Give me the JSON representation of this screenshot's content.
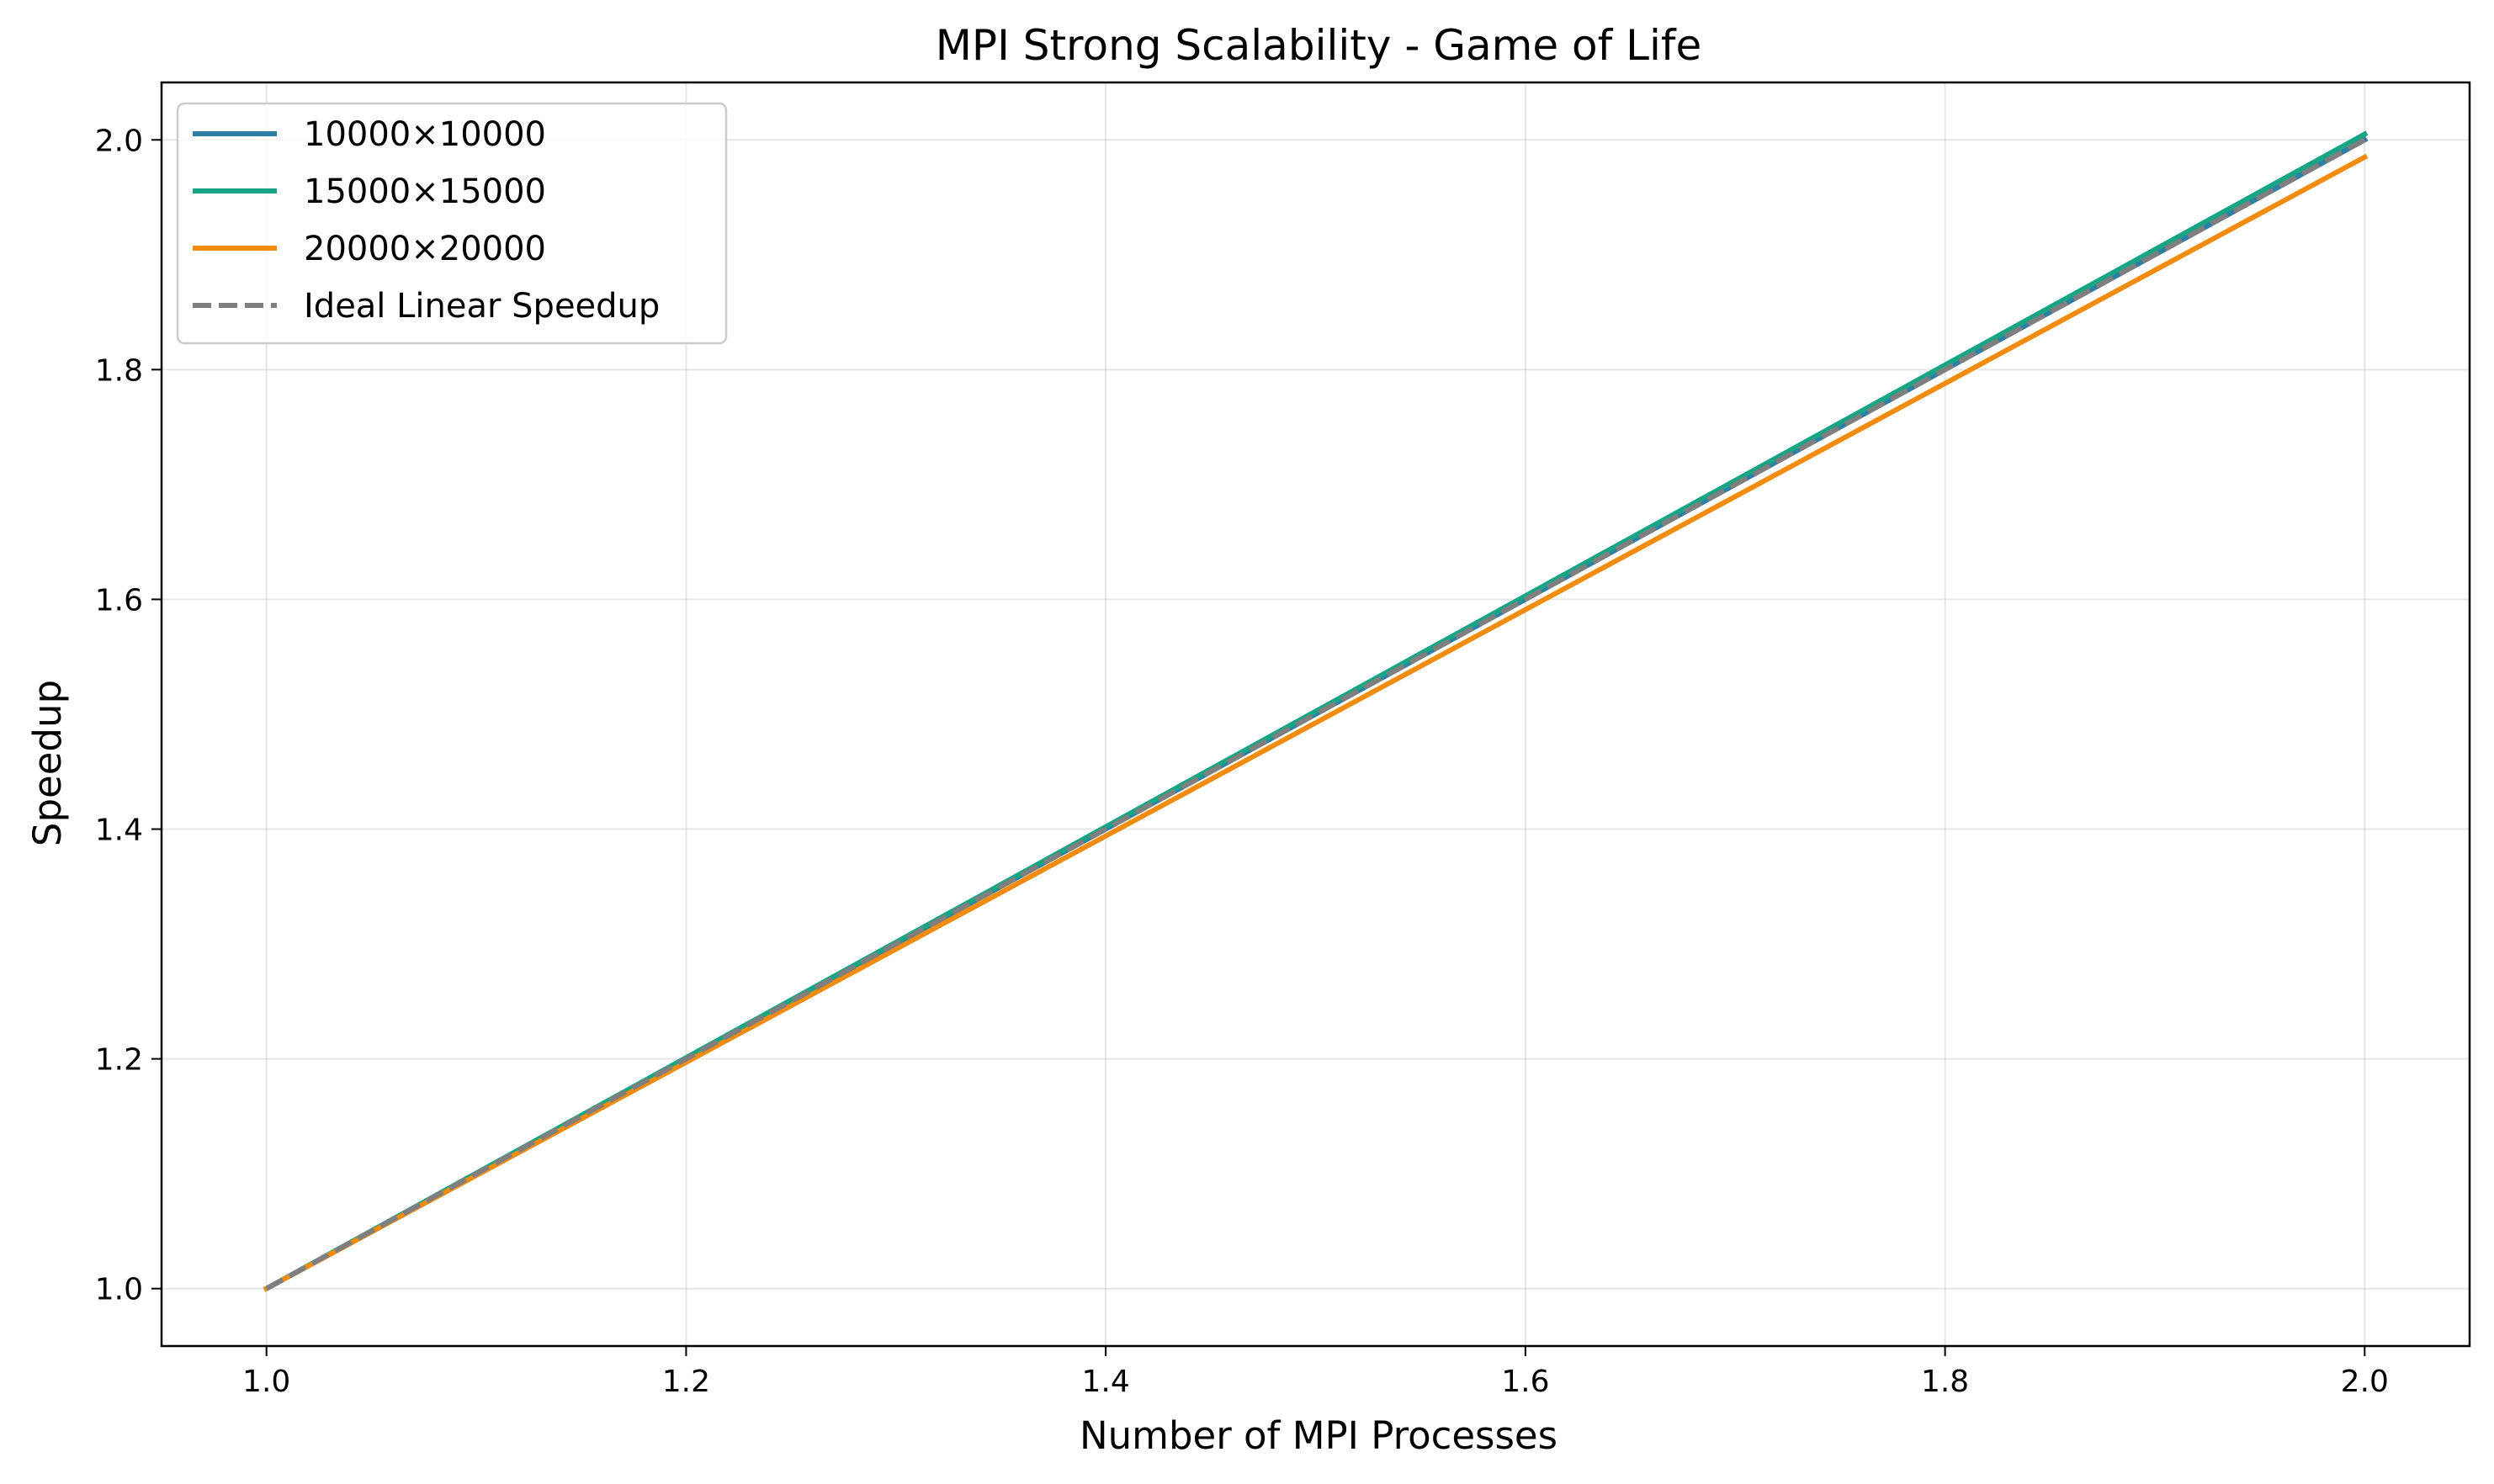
{
  "chart_data": {
    "type": "line",
    "title": "MPI Strong Scalability - Game of Life",
    "xlabel": "Number of MPI Processes",
    "ylabel": "Speedup",
    "xlim": [
      0.95,
      2.05
    ],
    "ylim": [
      0.95,
      2.05
    ],
    "xticks": [
      1.0,
      1.2,
      1.4,
      1.6,
      1.8,
      2.0
    ],
    "yticks": [
      1.0,
      1.2,
      1.4,
      1.6,
      1.8,
      2.0
    ],
    "xtick_labels": [
      "1.0",
      "1.2",
      "1.4",
      "1.6",
      "1.8",
      "2.0"
    ],
    "ytick_labels": [
      "1.0",
      "1.2",
      "1.4",
      "1.6",
      "1.8",
      "2.0"
    ],
    "grid": true,
    "legend_position": "top-left",
    "series": [
      {
        "name": "10000×10000",
        "x": [
          1,
          2
        ],
        "y": [
          1.0,
          2.0
        ],
        "color": "#2e7ea6",
        "style": "solid"
      },
      {
        "name": "15000×15000",
        "x": [
          1,
          2
        ],
        "y": [
          1.0,
          2.005
        ],
        "color": "#17a585",
        "style": "solid"
      },
      {
        "name": "20000×20000",
        "x": [
          1,
          2
        ],
        "y": [
          1.0,
          1.985
        ],
        "color": "#f28c0f",
        "style": "solid"
      },
      {
        "name": "Ideal Linear Speedup",
        "x": [
          1,
          2
        ],
        "y": [
          1.0,
          2.0
        ],
        "color": "#7f7f7f",
        "style": "dashed"
      }
    ]
  }
}
